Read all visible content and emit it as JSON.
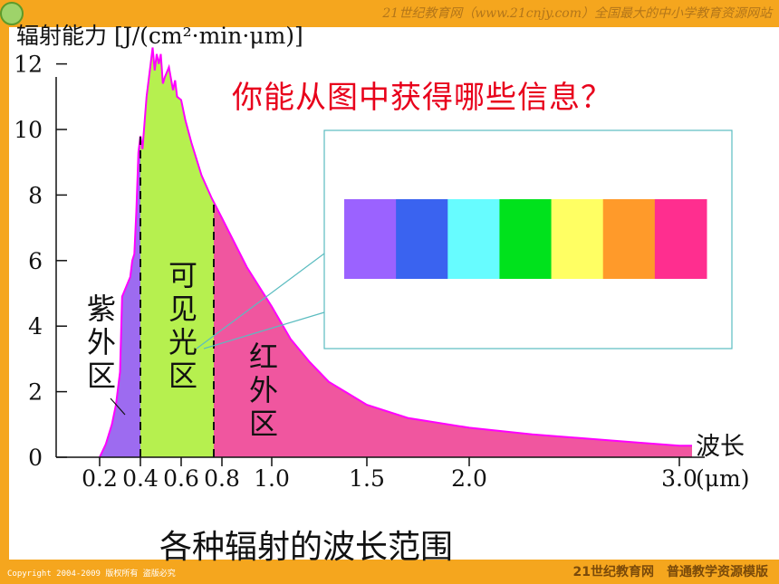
{
  "header": {
    "site_text": "21世纪教育网（www.21cnjy.com）全国最大的中小学教育资源网站"
  },
  "question": "你能从图中获得哪些信息？",
  "caption": "各种辐射的波长范围",
  "footer": {
    "copyright": "Copyright 2004-2009 版权所有 盗版必究",
    "brand": "21世纪教育网　普通教学资源模版"
  },
  "colors": {
    "frame": "#f5a61e",
    "question_text": "#e8001b",
    "curve": "#ff00ff",
    "ultraviolet_fill": "#9d6bf0",
    "visible_fill": "#b6f04f",
    "infrared_fill": "#f0569f",
    "callout_border": "#5bbcc0"
  },
  "spectrum_strip": [
    "#9b62ff",
    "#3a63f0",
    "#67fcff",
    "#00e21c",
    "#ffff63",
    "#ff9a2a",
    "#ff2e8f"
  ],
  "chart_data": {
    "type": "area",
    "ylabel": "辐射能力 [J/(cm²·min·μm)]",
    "xlabel": "波长",
    "x_unit": "(μm)",
    "xlim": [
      0.1,
      3.1
    ],
    "ylim": [
      0,
      12.5
    ],
    "x_ticks": [
      {
        "value": 0.2,
        "label": "0.2"
      },
      {
        "value": 0.4,
        "label": "0.4"
      },
      {
        "value": 0.6,
        "label": "0.6"
      },
      {
        "value": 0.8,
        "label": "0.8"
      },
      {
        "value": 1.0,
        "label": "1.0"
      },
      {
        "value": 1.5,
        "label": "1.5"
      },
      {
        "value": 2.0,
        "label": "2.0"
      },
      {
        "value": 3.0,
        "label": "3.0"
      }
    ],
    "y_ticks": [
      {
        "value": 0,
        "label": "0"
      },
      {
        "value": 2,
        "label": "2"
      },
      {
        "value": 4,
        "label": "4"
      },
      {
        "value": 6,
        "label": "6"
      },
      {
        "value": 8,
        "label": "8"
      },
      {
        "value": 10,
        "label": "10"
      },
      {
        "value": 12,
        "label": "12"
      }
    ],
    "curve": {
      "x": [
        0.2,
        0.23,
        0.26,
        0.28,
        0.3,
        0.31,
        0.33,
        0.35,
        0.36,
        0.37,
        0.38,
        0.39,
        0.4,
        0.41,
        0.43,
        0.45,
        0.46,
        0.47,
        0.48,
        0.49,
        0.5,
        0.51,
        0.52,
        0.54,
        0.56,
        0.57,
        0.58,
        0.6,
        0.62,
        0.65,
        0.7,
        0.75,
        0.8,
        0.9,
        1.0,
        1.1,
        1.2,
        1.3,
        1.5,
        1.7,
        2.0,
        2.3,
        2.6,
        2.8,
        3.0,
        3.05
      ],
      "y": [
        0.0,
        0.4,
        1.0,
        1.6,
        2.6,
        4.9,
        5.2,
        5.5,
        6.0,
        6.2,
        7.5,
        9.3,
        9.8,
        9.4,
        11.0,
        12.0,
        12.5,
        11.8,
        12.3,
        12.0,
        12.3,
        11.4,
        11.6,
        11.9,
        11.2,
        11.5,
        11.0,
        10.9,
        10.3,
        9.6,
        8.6,
        7.9,
        7.3,
        5.8,
        4.6,
        3.6,
        2.9,
        2.3,
        1.6,
        1.2,
        0.9,
        0.7,
        0.55,
        0.45,
        0.35,
        0.35
      ]
    },
    "regions": [
      {
        "name": "紫外区",
        "x_range": [
          0.2,
          0.4
        ]
      },
      {
        "name": "可见光区",
        "x_range": [
          0.4,
          0.76
        ]
      },
      {
        "name": "红外区",
        "x_range": [
          0.76,
          3.05
        ]
      }
    ]
  }
}
